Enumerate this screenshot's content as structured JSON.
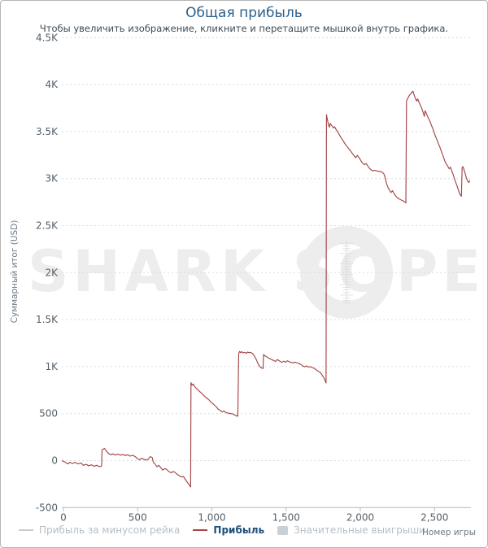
{
  "header": {
    "title": "Общая прибыль",
    "subtitle": "Чтобы увеличить изображение, кликните и перетащите мышкой внутрь графика."
  },
  "watermark": {
    "text_left": "SHARK SC",
    "text_right": "PE",
    "color": "#ededed"
  },
  "legend": {
    "items": [
      {
        "label": "Прибыль за минусом рейка",
        "swatch": "line",
        "color": "#c6ccd2",
        "text_color": "#b6bec5",
        "active": false
      },
      {
        "label": "Прибыль",
        "swatch": "line",
        "color": "#a34545",
        "text_color": "#1d4e79",
        "active": true
      },
      {
        "label": "Значительные выигрыши",
        "swatch": "box",
        "color": "#c9d0d6",
        "text_color": "#b6bec5",
        "active": false
      }
    ]
  },
  "colors": {
    "title": "#2c5f8c",
    "subtitle": "#3f4a54",
    "grid": "#d6dde2",
    "axis": "#b3b9bd",
    "tick_label": "#556069",
    "axis_title": "#6e7983",
    "series_line": "#a34545",
    "watermark": "#ededed",
    "frame_border": "#b5b5b5"
  },
  "chart_data": {
    "type": "line",
    "title": "Общая прибыль",
    "xlabel": "Номер игры",
    "ylabel": "Суммарный итог (USD)",
    "xlim": [
      0,
      2750
    ],
    "ylim": [
      -500,
      4500
    ],
    "grid": "horizontal-dashed",
    "legend_position": "bottom",
    "x_ticks": [
      0,
      500,
      1000,
      1500,
      2000,
      2500
    ],
    "x_tick_labels": [
      "0",
      "500",
      "1,000",
      "1,500",
      "2,000",
      "2,500"
    ],
    "y_ticks": [
      4500,
      4000,
      3500,
      3000,
      2500,
      2000,
      1500,
      1000,
      500,
      0,
      -500
    ],
    "y_tick_labels": [
      "4.5K",
      "4K",
      "3.5K",
      "3K",
      "2.5K",
      "2K",
      "1.5K",
      "1K",
      "500",
      "0",
      "-500"
    ],
    "series": [
      {
        "name": "Прибыль",
        "color": "#a34545",
        "points": [
          [
            0,
            0
          ],
          [
            20,
            -15
          ],
          [
            40,
            -35
          ],
          [
            55,
            -18
          ],
          [
            70,
            -30
          ],
          [
            90,
            -20
          ],
          [
            110,
            -35
          ],
          [
            130,
            -25
          ],
          [
            145,
            -50
          ],
          [
            165,
            -40
          ],
          [
            180,
            -55
          ],
          [
            200,
            -45
          ],
          [
            215,
            -60
          ],
          [
            235,
            -50
          ],
          [
            255,
            -65
          ],
          [
            268,
            -58
          ],
          [
            271,
            115
          ],
          [
            288,
            130
          ],
          [
            300,
            100
          ],
          [
            315,
            76
          ],
          [
            330,
            62
          ],
          [
            345,
            72
          ],
          [
            360,
            60
          ],
          [
            378,
            68
          ],
          [
            395,
            58
          ],
          [
            412,
            66
          ],
          [
            428,
            54
          ],
          [
            445,
            62
          ],
          [
            460,
            48
          ],
          [
            478,
            56
          ],
          [
            495,
            42
          ],
          [
            510,
            20
          ],
          [
            525,
            8
          ],
          [
            538,
            26
          ],
          [
            552,
            15
          ],
          [
            565,
            5
          ],
          [
            580,
            12
          ],
          [
            596,
            42
          ],
          [
            608,
            35
          ],
          [
            617,
            -18
          ],
          [
            628,
            -35
          ],
          [
            640,
            -65
          ],
          [
            654,
            -50
          ],
          [
            668,
            -78
          ],
          [
            680,
            -100
          ],
          [
            694,
            -85
          ],
          [
            708,
            -95
          ],
          [
            722,
            -118
          ],
          [
            738,
            -130
          ],
          [
            750,
            -115
          ],
          [
            763,
            -125
          ],
          [
            778,
            -148
          ],
          [
            793,
            -160
          ],
          [
            806,
            -175
          ],
          [
            818,
            -168
          ],
          [
            830,
            -195
          ],
          [
            843,
            -225
          ],
          [
            854,
            -248
          ],
          [
            862,
            -268
          ],
          [
            868,
            -280
          ],
          [
            870,
            830
          ],
          [
            878,
            802
          ],
          [
            886,
            815
          ],
          [
            895,
            788
          ],
          [
            905,
            770
          ],
          [
            915,
            755
          ],
          [
            928,
            735
          ],
          [
            940,
            720
          ],
          [
            950,
            702
          ],
          [
            960,
            688
          ],
          [
            972,
            668
          ],
          [
            985,
            655
          ],
          [
            995,
            640
          ],
          [
            1005,
            622
          ],
          [
            1018,
            605
          ],
          [
            1030,
            588
          ],
          [
            1042,
            570
          ],
          [
            1052,
            548
          ],
          [
            1062,
            540
          ],
          [
            1072,
            528
          ],
          [
            1082,
            518
          ],
          [
            1092,
            528
          ],
          [
            1105,
            512
          ],
          [
            1118,
            505
          ],
          [
            1132,
            502
          ],
          [
            1148,
            498
          ],
          [
            1160,
            490
          ],
          [
            1172,
            478
          ],
          [
            1186,
            472
          ],
          [
            1192,
            1140
          ],
          [
            1198,
            1162
          ],
          [
            1205,
            1148
          ],
          [
            1212,
            1158
          ],
          [
            1222,
            1145
          ],
          [
            1232,
            1152
          ],
          [
            1242,
            1142
          ],
          [
            1252,
            1155
          ],
          [
            1262,
            1148
          ],
          [
            1272,
            1152
          ],
          [
            1285,
            1138
          ],
          [
            1298,
            1112
          ],
          [
            1310,
            1075
          ],
          [
            1322,
            1030
          ],
          [
            1335,
            998
          ],
          [
            1350,
            982
          ],
          [
            1356,
            980
          ],
          [
            1359,
            1128
          ],
          [
            1368,
            1115
          ],
          [
            1380,
            1105
          ],
          [
            1392,
            1092
          ],
          [
            1405,
            1082
          ],
          [
            1418,
            1072
          ],
          [
            1430,
            1062
          ],
          [
            1440,
            1055
          ],
          [
            1452,
            1075
          ],
          [
            1462,
            1065
          ],
          [
            1472,
            1055
          ],
          [
            1482,
            1045
          ],
          [
            1495,
            1058
          ],
          [
            1508,
            1048
          ],
          [
            1520,
            1062
          ],
          [
            1532,
            1052
          ],
          [
            1545,
            1045
          ],
          [
            1558,
            1040
          ],
          [
            1572,
            1048
          ],
          [
            1585,
            1038
          ],
          [
            1598,
            1032
          ],
          [
            1612,
            1022
          ],
          [
            1625,
            1005
          ],
          [
            1638,
            998
          ],
          [
            1650,
            1008
          ],
          [
            1662,
            995
          ],
          [
            1675,
            1000
          ],
          [
            1688,
            988
          ],
          [
            1700,
            982
          ],
          [
            1712,
            968
          ],
          [
            1725,
            952
          ],
          [
            1738,
            942
          ],
          [
            1748,
            925
          ],
          [
            1758,
            900
          ],
          [
            1768,
            872
          ],
          [
            1775,
            845
          ],
          [
            1780,
            826
          ],
          [
            1783,
            3680
          ],
          [
            1788,
            3640
          ],
          [
            1793,
            3600
          ],
          [
            1798,
            3565
          ],
          [
            1803,
            3548
          ],
          [
            1808,
            3588
          ],
          [
            1815,
            3572
          ],
          [
            1822,
            3558
          ],
          [
            1830,
            3540
          ],
          [
            1838,
            3552
          ],
          [
            1846,
            3528
          ],
          [
            1854,
            3508
          ],
          [
            1862,
            3488
          ],
          [
            1870,
            3465
          ],
          [
            1878,
            3445
          ],
          [
            1886,
            3425
          ],
          [
            1895,
            3405
          ],
          [
            1903,
            3382
          ],
          [
            1912,
            3362
          ],
          [
            1920,
            3345
          ],
          [
            1930,
            3325
          ],
          [
            1940,
            3305
          ],
          [
            1950,
            3285
          ],
          [
            1960,
            3262
          ],
          [
            1970,
            3242
          ],
          [
            1980,
            3222
          ],
          [
            1990,
            3248
          ],
          [
            2000,
            3228
          ],
          [
            2010,
            3205
          ],
          [
            2020,
            3178
          ],
          [
            2030,
            3158
          ],
          [
            2040,
            3148
          ],
          [
            2050,
            3162
          ],
          [
            2060,
            3138
          ],
          [
            2072,
            3112
          ],
          [
            2085,
            3092
          ],
          [
            2098,
            3082
          ],
          [
            2112,
            3088
          ],
          [
            2126,
            3080
          ],
          [
            2140,
            3076
          ],
          [
            2154,
            3072
          ],
          [
            2168,
            3055
          ],
          [
            2178,
            3015
          ],
          [
            2188,
            2945
          ],
          [
            2198,
            2905
          ],
          [
            2208,
            2875
          ],
          [
            2218,
            2852
          ],
          [
            2228,
            2872
          ],
          [
            2238,
            2842
          ],
          [
            2250,
            2815
          ],
          [
            2262,
            2795
          ],
          [
            2275,
            2782
          ],
          [
            2288,
            2772
          ],
          [
            2300,
            2762
          ],
          [
            2310,
            2752
          ],
          [
            2318,
            2742
          ],
          [
            2322,
            3828
          ],
          [
            2330,
            3852
          ],
          [
            2340,
            3882
          ],
          [
            2350,
            3902
          ],
          [
            2360,
            3922
          ],
          [
            2366,
            3930
          ],
          [
            2372,
            3895
          ],
          [
            2380,
            3862
          ],
          [
            2390,
            3825
          ],
          [
            2398,
            3848
          ],
          [
            2406,
            3815
          ],
          [
            2415,
            3785
          ],
          [
            2424,
            3752
          ],
          [
            2432,
            3715
          ],
          [
            2438,
            3685
          ],
          [
            2443,
            3662
          ],
          [
            2447,
            3722
          ],
          [
            2455,
            3698
          ],
          [
            2464,
            3662
          ],
          [
            2473,
            3632
          ],
          [
            2482,
            3602
          ],
          [
            2491,
            3565
          ],
          [
            2500,
            3528
          ],
          [
            2509,
            3488
          ],
          [
            2518,
            3448
          ],
          [
            2527,
            3415
          ],
          [
            2536,
            3375
          ],
          [
            2545,
            3342
          ],
          [
            2554,
            3305
          ],
          [
            2563,
            3265
          ],
          [
            2572,
            3225
          ],
          [
            2581,
            3185
          ],
          [
            2590,
            3155
          ],
          [
            2600,
            3132
          ],
          [
            2610,
            3105
          ],
          [
            2618,
            3122
          ],
          [
            2627,
            3082
          ],
          [
            2636,
            3045
          ],
          [
            2645,
            3002
          ],
          [
            2653,
            2962
          ],
          [
            2661,
            2932
          ],
          [
            2669,
            2892
          ],
          [
            2677,
            2855
          ],
          [
            2684,
            2828
          ],
          [
            2692,
            2812
          ],
          [
            2697,
            3118
          ],
          [
            2703,
            3128
          ],
          [
            2710,
            3092
          ],
          [
            2718,
            3052
          ],
          [
            2726,
            3005
          ],
          [
            2734,
            2972
          ],
          [
            2742,
            2958
          ],
          [
            2749,
            2982
          ]
        ]
      }
    ]
  }
}
